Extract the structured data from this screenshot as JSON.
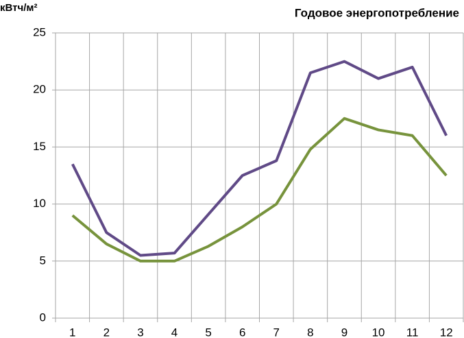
{
  "chart_data": {
    "type": "line",
    "title": "Годовое энергопотребление",
    "y_label": "кВтч/м²",
    "categories": [
      "1",
      "2",
      "3",
      "4",
      "5",
      "6",
      "7",
      "8",
      "9",
      "10",
      "11",
      "12"
    ],
    "series": [
      {
        "color": "#604a87",
        "values": [
          13.5,
          7.5,
          5.5,
          5.7,
          9.1,
          12.5,
          13.8,
          21.5,
          22.5,
          21,
          22,
          16
        ]
      },
      {
        "color": "#77933c",
        "values": [
          9,
          6.5,
          5,
          5,
          6.3,
          8,
          10,
          14.8,
          17.5,
          16.5,
          16,
          12.5
        ]
      }
    ],
    "ylim": [
      0,
      25
    ],
    "yticks": [
      0,
      5,
      10,
      15,
      20,
      25
    ],
    "grid": true
  }
}
